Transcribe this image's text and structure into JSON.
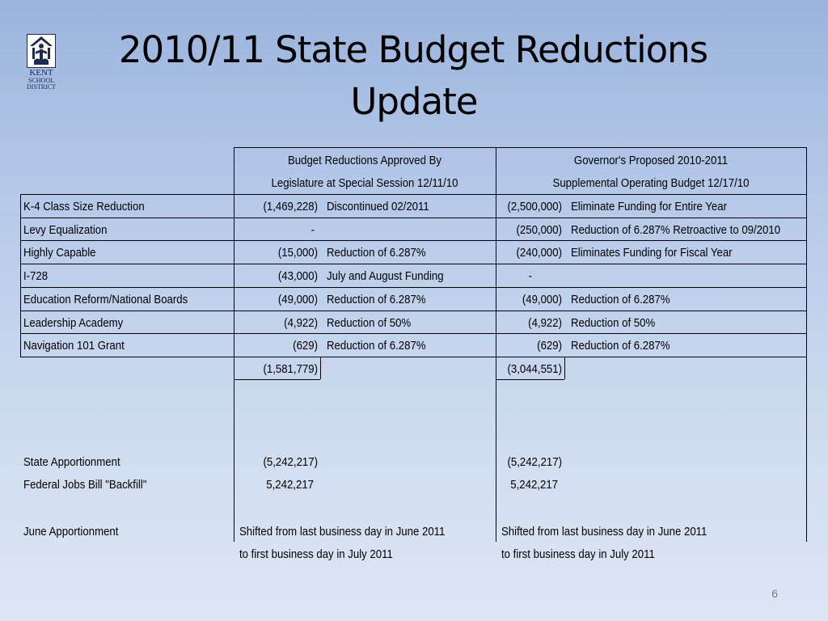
{
  "logo": {
    "line1": "KENT",
    "line2": "SCHOOL",
    "line3": "DISTRICT",
    "icon": "kent-school-district-logo-icon"
  },
  "title": {
    "line1": "2010/11 State Budget Reductions",
    "line2": "Update"
  },
  "table": {
    "header_legislature": {
      "line1": "Budget Reductions Approved By",
      "line2": "Legislature at Special Session 12/11/10"
    },
    "header_governor": {
      "line1": "Governor's Proposed 2010-2011",
      "line2": "Supplemental Operating Budget 12/17/10"
    },
    "rows": [
      {
        "label": "K-4 Class Size Reduction",
        "leg_amount": "(1,469,228)",
        "leg_note": "Discontinued 02/2011",
        "gov_amount": "(2,500,000)",
        "gov_note": "Eliminate Funding for Entire Year"
      },
      {
        "label": "Levy Equalization",
        "leg_amount": "-",
        "leg_note": "",
        "gov_amount": "(250,000)",
        "gov_note": "Reduction of 6.287% Retroactive to 09/2010"
      },
      {
        "label": "Highly Capable",
        "leg_amount": "(15,000)",
        "leg_note": "Reduction of 6.287%",
        "gov_amount": "(240,000)",
        "gov_note": "Eliminates Funding for Fiscal Year"
      },
      {
        "label": "I-728",
        "leg_amount": "(43,000)",
        "leg_note": "July and August Funding",
        "gov_amount": "-",
        "gov_note": ""
      },
      {
        "label": "Education Reform/National Boards",
        "leg_amount": "(49,000)",
        "leg_note": "Reduction of 6.287%",
        "gov_amount": "(49,000)",
        "gov_note": "Reduction of 6.287%"
      },
      {
        "label": "Leadership Academy",
        "leg_amount": "(4,922)",
        "leg_note": "Reduction of 50%",
        "gov_amount": "(4,922)",
        "gov_note": "Reduction of 50%"
      },
      {
        "label": "Navigation 101 Grant",
        "leg_amount": "(629)",
        "leg_note": "Reduction of 6.287%",
        "gov_amount": "(629)",
        "gov_note": "Reduction of 6.287%"
      }
    ],
    "totals": {
      "leg_total": "(1,581,779)",
      "gov_total": "(3,044,551)"
    },
    "apportionment": [
      {
        "label": "State Apportionment",
        "leg_amount": "(5,242,217)",
        "gov_amount": "(5,242,217)"
      },
      {
        "label": "Federal Jobs Bill \"Backfill\"",
        "leg_amount": "5,242,217",
        "gov_amount": "5,242,217"
      }
    ],
    "june": {
      "label": "June Apportionment",
      "leg_line1": "Shifted from last business day in June 2011",
      "leg_line2": "to first business day in July 2011",
      "gov_line1": "Shifted from last business day in June 2011",
      "gov_line2": "to first business day in July 2011"
    }
  },
  "page_number": "6"
}
